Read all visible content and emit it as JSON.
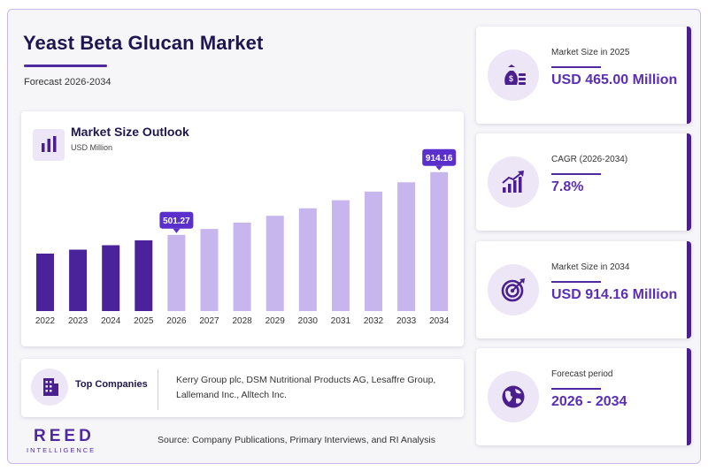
{
  "header": {
    "title": "Yeast Beta Glucan Market",
    "subtitle": "Forecast 2026-2034"
  },
  "chart_section": {
    "title": "Market Size Outlook",
    "unit": "USD Million"
  },
  "chart_data": {
    "type": "bar",
    "title": "Market Size Outlook",
    "ylabel": "USD Million",
    "categories": [
      "2022",
      "2023",
      "2024",
      "2025",
      "2026",
      "2027",
      "2028",
      "2029",
      "2030",
      "2031",
      "2032",
      "2033",
      "2034"
    ],
    "values": [
      378,
      404,
      433,
      465,
      501.27,
      540,
      582,
      627,
      676,
      729,
      786,
      847,
      914.16
    ],
    "historical_until": "2025",
    "data_labels": {
      "2026": "501.27",
      "2034": "914.16"
    },
    "ylim": [
      0,
      1000
    ],
    "grid": false,
    "colors": {
      "historical": "#4a239a",
      "forecast": "#c7b5ee",
      "label_bg": "#5b2fcc"
    }
  },
  "companies": {
    "label": "Top Companies",
    "text": "Kerry Group plc, DSM Nutritional Products AG, Lesaffre Group, Lallemand Inc., Alltech Inc."
  },
  "logo": {
    "main": "REED",
    "sub": "INTELLIGENCE"
  },
  "source": "Source: Company Publications, Primary Interviews, and RI Analysis",
  "stats": [
    {
      "label": "Market Size in 2025",
      "value": "USD 465.00 Million",
      "icon": "money-bag-icon"
    },
    {
      "label": "CAGR (2026-2034)",
      "value": "7.8%",
      "icon": "growth-chart-icon"
    },
    {
      "label": "Market Size in 2034",
      "value": "USD 914.16 Million",
      "icon": "target-icon"
    },
    {
      "label": "Forecast period",
      "value": "2026 - 2034",
      "icon": "globe-icon"
    }
  ],
  "colors": {
    "accent": "#4e2a9e",
    "value_text": "#5a2fb5",
    "icon_bg": "#ece6f7",
    "title": "#1f1650"
  }
}
